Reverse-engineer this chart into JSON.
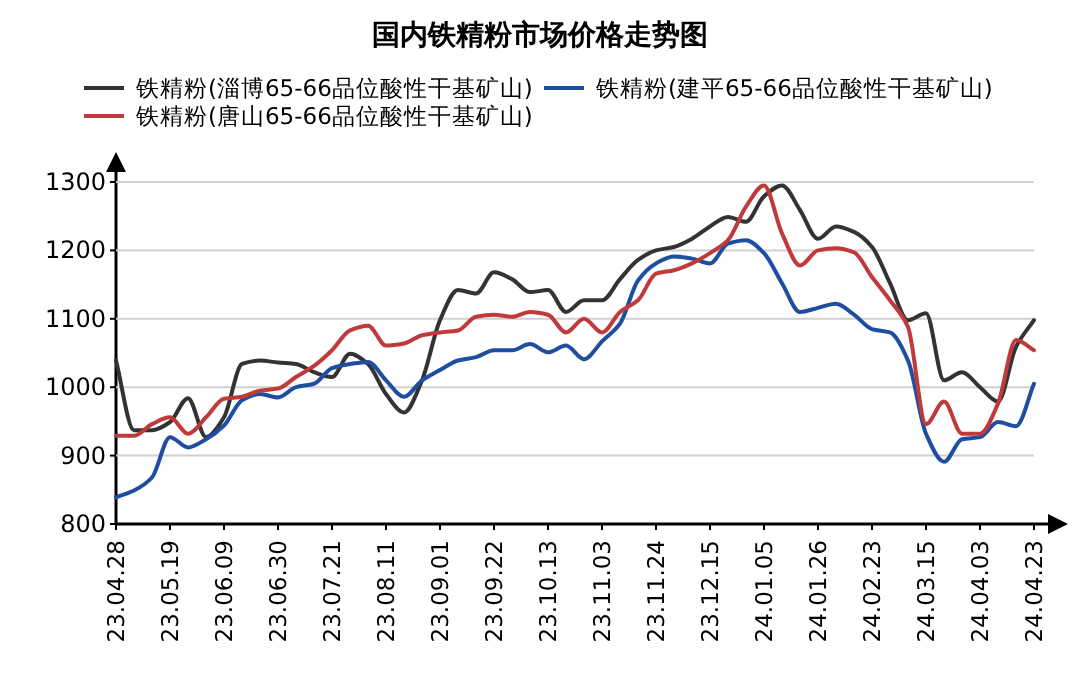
{
  "chart_data": {
    "type": "line",
    "title": "国内铁精粉市场价格走势图",
    "categories": [
      "23.04.28",
      null,
      null,
      "23.05.19",
      null,
      null,
      "23.06.09",
      null,
      null,
      "23.06.30",
      null,
      null,
      "23.07.21",
      null,
      null,
      "23.08.11",
      null,
      null,
      "23.09.01",
      null,
      null,
      "23.09.22",
      null,
      null,
      "23.10.13",
      null,
      null,
      "23.11.03",
      null,
      null,
      "23.11.24",
      null,
      null,
      "23.12.15",
      null,
      null,
      "24.01.05",
      null,
      null,
      "24.01.26",
      null,
      null,
      "24.02.23",
      null,
      null,
      "24.03.15",
      null,
      null,
      "24.04.03",
      null,
      null,
      "24.04.23"
    ],
    "series": [
      {
        "name": "铁精粉(淄博65-66品位酸性干基矿山)",
        "color": "#333333",
        "values": [
          1039,
          937,
          937,
          949,
          984,
          927,
          956,
          1034,
          1039,
          1036,
          1034,
          1022,
          1015,
          1049,
          1034,
          990,
          963,
          1010,
          1098,
          1142,
          1137,
          1168,
          1158,
          1139,
          1142,
          1110,
          1127,
          1127,
          1158,
          1186,
          1200,
          1205,
          1217,
          1235,
          1249,
          1242,
          1279,
          1295,
          1259,
          1217,
          1235,
          1227,
          1205,
          1152,
          1098,
          1108,
          1010,
          1022,
          1000,
          979,
          1059,
          1098
        ]
      },
      {
        "name": "铁精粉(建平65-66品位酸性干基矿山)",
        "color": "#1f4ea1",
        "values": [
          839,
          849,
          868,
          927,
          912,
          924,
          944,
          981,
          990,
          985,
          1000,
          1005,
          1028,
          1034,
          1037,
          1010,
          986,
          1010,
          1025,
          1039,
          1044,
          1054,
          1054,
          1063,
          1051,
          1061,
          1041,
          1067,
          1093,
          1156,
          1181,
          1191,
          1188,
          1181,
          1210,
          1215,
          1196,
          1152,
          1110,
          1116,
          1122,
          1106,
          1085,
          1080,
          1039,
          932,
          891,
          924,
          927,
          949,
          943,
          1005
        ]
      },
      {
        "name": "铁精粉(唐山65-66品位酸性干基矿山)",
        "color": "#c0393b",
        "values": [
          929,
          929,
          946,
          956,
          932,
          956,
          983,
          986,
          995,
          998,
          1015,
          1031,
          1054,
          1083,
          1090,
          1061,
          1064,
          1076,
          1080,
          1083,
          1103,
          1106,
          1103,
          1110,
          1106,
          1080,
          1100,
          1080,
          1110,
          1127,
          1166,
          1171,
          1181,
          1196,
          1215,
          1264,
          1295,
          1225,
          1178,
          1200,
          1203,
          1197,
          1161,
          1127,
          1088,
          946,
          979,
          932,
          932,
          976,
          1069,
          1054
        ]
      }
    ],
    "ylim": [
      800,
      1300
    ],
    "yticks": [
      800,
      900,
      1000,
      1100,
      1200,
      1300
    ],
    "grid": "y",
    "legend": "top"
  }
}
